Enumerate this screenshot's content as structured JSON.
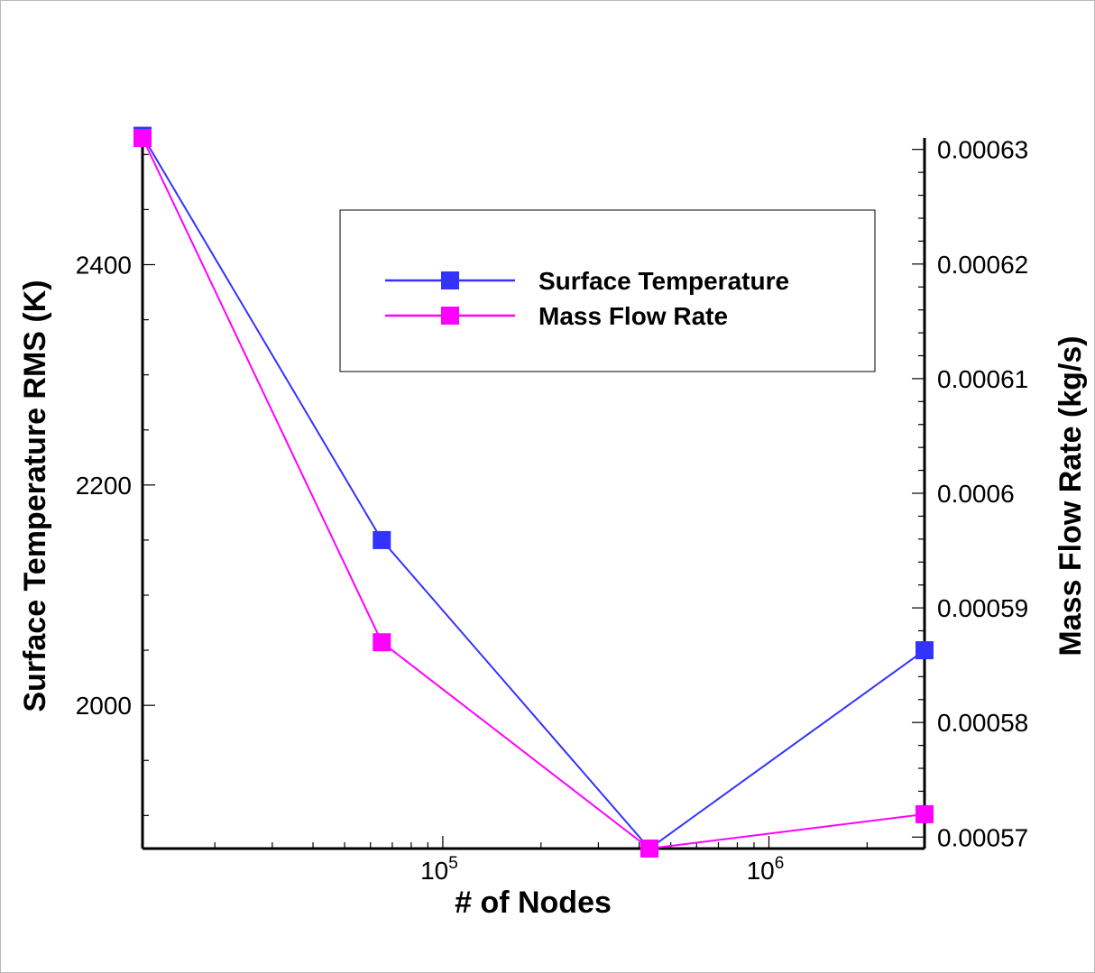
{
  "chart_data": {
    "type": "line",
    "xlabel": "# of Nodes",
    "ylabel_left": "Surface Temperature RMS (K)",
    "ylabel_right": "Mass Flow Rate (kg/s)",
    "xscale": "log",
    "xlim": [
      12000,
      3000000
    ],
    "ylim_left": [
      1870,
      2515
    ],
    "ylim_right": [
      0.000569,
      0.000631
    ],
    "x_ticks": [
      {
        "value": 100000,
        "base": "10",
        "exp": "5"
      },
      {
        "value": 1000000,
        "base": "10",
        "exp": "6"
      }
    ],
    "y_ticks_left": [
      {
        "value": 2000,
        "label": "2000"
      },
      {
        "value": 2200,
        "label": "2200"
      },
      {
        "value": 2400,
        "label": "2400"
      }
    ],
    "y_ticks_right": [
      {
        "value": 0.00057,
        "label": "0.00057"
      },
      {
        "value": 0.00058,
        "label": "0.00058"
      },
      {
        "value": 0.00059,
        "label": "0.00059"
      },
      {
        "value": 0.0006,
        "label": "0.0006"
      },
      {
        "value": 0.00061,
        "label": "0.00061"
      },
      {
        "value": 0.00062,
        "label": "0.00062"
      },
      {
        "value": 0.00063,
        "label": "0.00063"
      }
    ],
    "grid": false,
    "legend_position": "top-center",
    "series": [
      {
        "name": "Surface Temperature",
        "axis": "left",
        "color": "#3333ff",
        "marker": "square",
        "x": [
          12000,
          65000,
          430000,
          3000000
        ],
        "y": [
          2517,
          2150,
          1870,
          2050
        ]
      },
      {
        "name": "Mass Flow Rate",
        "axis": "right",
        "color": "#ff00ff",
        "marker": "square",
        "x": [
          12000,
          65000,
          430000,
          3000000
        ],
        "y": [
          0.000631,
          0.000587,
          0.000569,
          0.000572
        ]
      }
    ]
  }
}
